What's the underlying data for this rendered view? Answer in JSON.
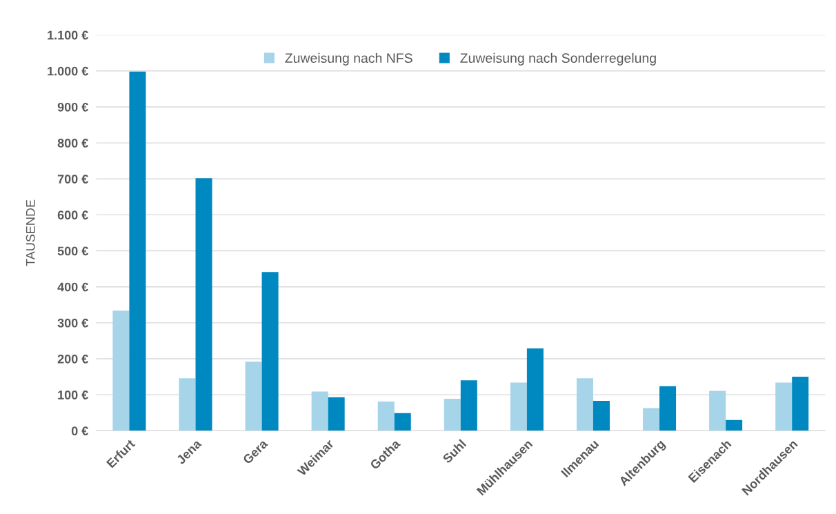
{
  "chart_data": {
    "type": "bar",
    "ylabel": "TAUSENDE",
    "categories": [
      "Erfurt",
      "Jena",
      "Gera",
      "Weimar",
      "Gotha",
      "Suhl",
      "Mühlhausen",
      "Ilmenau",
      "Altenburg",
      "Eisenach",
      "Nordhausen"
    ],
    "series": [
      {
        "name": "Zuweisung nach NFS",
        "color": "#a6d4e8",
        "values": [
          334,
          146,
          192,
          109,
          81,
          89,
          134,
          146,
          63,
          111,
          134
        ]
      },
      {
        "name": "Zuweisung nach Sonderregelung",
        "color": "#0088c0",
        "values": [
          998,
          702,
          441,
          93,
          49,
          140,
          229,
          83,
          124,
          30,
          150
        ]
      }
    ],
    "ylim": [
      0,
      1100
    ],
    "yticks": [
      {
        "value": 0,
        "label": "0 €"
      },
      {
        "value": 100,
        "label": "100 €"
      },
      {
        "value": 200,
        "label": "200 €"
      },
      {
        "value": 300,
        "label": "300 €"
      },
      {
        "value": 400,
        "label": "400 €"
      },
      {
        "value": 500,
        "label": "500 €"
      },
      {
        "value": 600,
        "label": "600 €"
      },
      {
        "value": 700,
        "label": "700 €"
      },
      {
        "value": 800,
        "label": "800 €"
      },
      {
        "value": 900,
        "label": "900 €"
      },
      {
        "value": 1000,
        "label": "1.000 €"
      },
      {
        "value": 1100,
        "label": "1.100 €"
      }
    ],
    "grid": "y",
    "legend": "top"
  }
}
